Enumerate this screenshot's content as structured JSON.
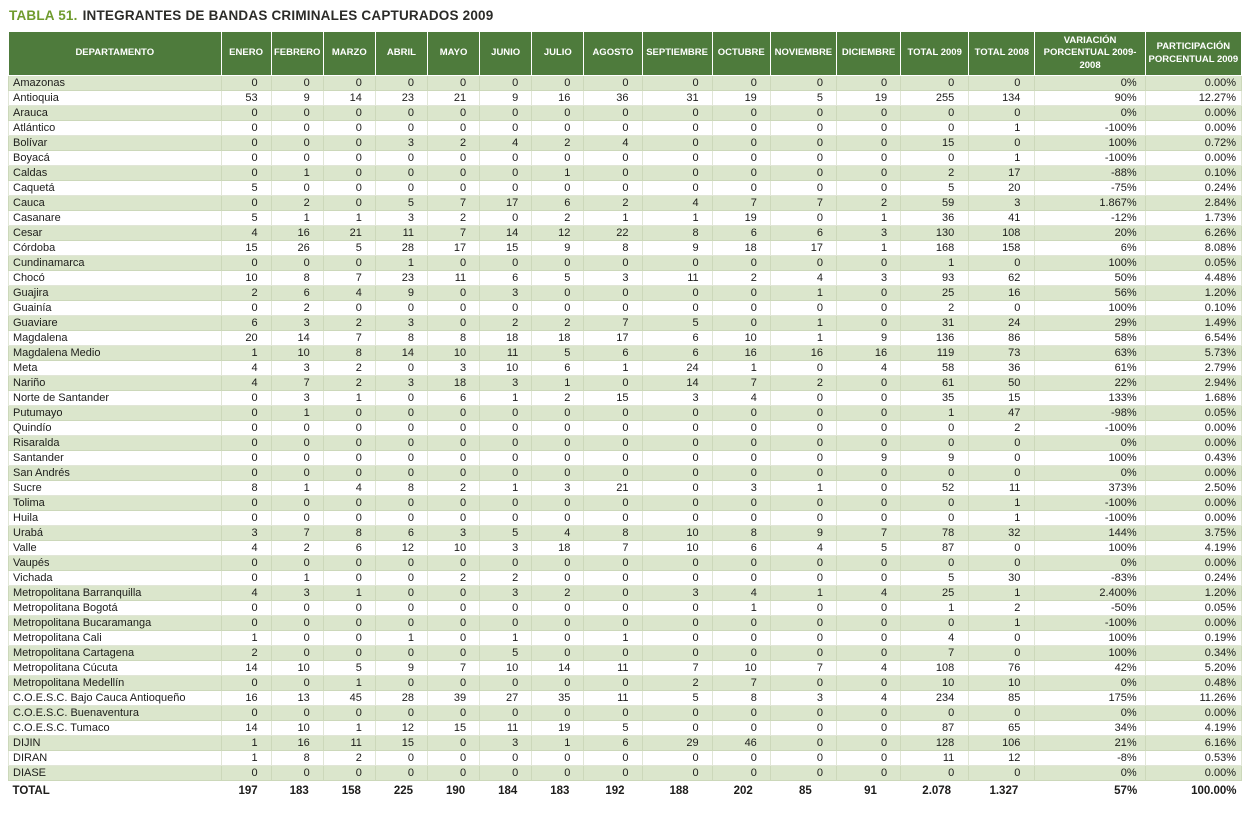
{
  "title": {
    "label": "TABLA 51.",
    "text": "INTEGRANTES DE BANDAS CRIMINALES CAPTURADOS 2009"
  },
  "colors": {
    "header_bg": "#4e7b3c",
    "row_alt": "#dbe6cc",
    "title_accent": "#6f9b2d"
  },
  "table": {
    "columns": [
      "DEPARTAMENTO",
      "ENERO",
      "FEBRERO",
      "MARZO",
      "ABRIL",
      "MAYO",
      "JUNIO",
      "JULIO",
      "AGOSTO",
      "SEPTIEMBRE",
      "OCTUBRE",
      "NOVIEMBRE",
      "DICIEMBRE",
      "TOTAL 2009",
      "TOTAL 2008",
      "VARIACIÓN\nPORCENTUAL 2009-2008",
      "PARTICIPACIÓN\nPORCENTUAL 2009"
    ],
    "rows": [
      [
        "Amazonas",
        "0",
        "0",
        "0",
        "0",
        "0",
        "0",
        "0",
        "0",
        "0",
        "0",
        "0",
        "0",
        "0",
        "0",
        "0%",
        "0.00%"
      ],
      [
        "Antioquia",
        "53",
        "9",
        "14",
        "23",
        "21",
        "9",
        "16",
        "36",
        "31",
        "19",
        "5",
        "19",
        "255",
        "134",
        "90%",
        "12.27%"
      ],
      [
        "Arauca",
        "0",
        "0",
        "0",
        "0",
        "0",
        "0",
        "0",
        "0",
        "0",
        "0",
        "0",
        "0",
        "0",
        "0",
        "0%",
        "0.00%"
      ],
      [
        "Atlántico",
        "0",
        "0",
        "0",
        "0",
        "0",
        "0",
        "0",
        "0",
        "0",
        "0",
        "0",
        "0",
        "0",
        "1",
        "-100%",
        "0.00%"
      ],
      [
        "Bolívar",
        "0",
        "0",
        "0",
        "3",
        "2",
        "4",
        "2",
        "4",
        "0",
        "0",
        "0",
        "0",
        "15",
        "0",
        "100%",
        "0.72%"
      ],
      [
        "Boyacá",
        "0",
        "0",
        "0",
        "0",
        "0",
        "0",
        "0",
        "0",
        "0",
        "0",
        "0",
        "0",
        "0",
        "1",
        "-100%",
        "0.00%"
      ],
      [
        "Caldas",
        "0",
        "1",
        "0",
        "0",
        "0",
        "0",
        "1",
        "0",
        "0",
        "0",
        "0",
        "0",
        "2",
        "17",
        "-88%",
        "0.10%"
      ],
      [
        "Caquetá",
        "5",
        "0",
        "0",
        "0",
        "0",
        "0",
        "0",
        "0",
        "0",
        "0",
        "0",
        "0",
        "5",
        "20",
        "-75%",
        "0.24%"
      ],
      [
        "Cauca",
        "0",
        "2",
        "0",
        "5",
        "7",
        "17",
        "6",
        "2",
        "4",
        "7",
        "7",
        "2",
        "59",
        "3",
        "1.867%",
        "2.84%"
      ],
      [
        "Casanare",
        "5",
        "1",
        "1",
        "3",
        "2",
        "0",
        "2",
        "1",
        "1",
        "19",
        "0",
        "1",
        "36",
        "41",
        "-12%",
        "1.73%"
      ],
      [
        "Cesar",
        "4",
        "16",
        "21",
        "11",
        "7",
        "14",
        "12",
        "22",
        "8",
        "6",
        "6",
        "3",
        "130",
        "108",
        "20%",
        "6.26%"
      ],
      [
        "Córdoba",
        "15",
        "26",
        "5",
        "28",
        "17",
        "15",
        "9",
        "8",
        "9",
        "18",
        "17",
        "1",
        "168",
        "158",
        "6%",
        "8.08%"
      ],
      [
        "Cundinamarca",
        "0",
        "0",
        "0",
        "1",
        "0",
        "0",
        "0",
        "0",
        "0",
        "0",
        "0",
        "0",
        "1",
        "0",
        "100%",
        "0.05%"
      ],
      [
        "Chocó",
        "10",
        "8",
        "7",
        "23",
        "11",
        "6",
        "5",
        "3",
        "11",
        "2",
        "4",
        "3",
        "93",
        "62",
        "50%",
        "4.48%"
      ],
      [
        "Guajira",
        "2",
        "6",
        "4",
        "9",
        "0",
        "3",
        "0",
        "0",
        "0",
        "0",
        "1",
        "0",
        "25",
        "16",
        "56%",
        "1.20%"
      ],
      [
        "Guainía",
        "0",
        "2",
        "0",
        "0",
        "0",
        "0",
        "0",
        "0",
        "0",
        "0",
        "0",
        "0",
        "2",
        "0",
        "100%",
        "0.10%"
      ],
      [
        "Guaviare",
        "6",
        "3",
        "2",
        "3",
        "0",
        "2",
        "2",
        "7",
        "5",
        "0",
        "1",
        "0",
        "31",
        "24",
        "29%",
        "1.49%"
      ],
      [
        "Magdalena",
        "20",
        "14",
        "7",
        "8",
        "8",
        "18",
        "18",
        "17",
        "6",
        "10",
        "1",
        "9",
        "136",
        "86",
        "58%",
        "6.54%"
      ],
      [
        "Magdalena Medio",
        "1",
        "10",
        "8",
        "14",
        "10",
        "11",
        "5",
        "6",
        "6",
        "16",
        "16",
        "16",
        "119",
        "73",
        "63%",
        "5.73%"
      ],
      [
        "Meta",
        "4",
        "3",
        "2",
        "0",
        "3",
        "10",
        "6",
        "1",
        "24",
        "1",
        "0",
        "4",
        "58",
        "36",
        "61%",
        "2.79%"
      ],
      [
        "Nariño",
        "4",
        "7",
        "2",
        "3",
        "18",
        "3",
        "1",
        "0",
        "14",
        "7",
        "2",
        "0",
        "61",
        "50",
        "22%",
        "2.94%"
      ],
      [
        "Norte de Santander",
        "0",
        "3",
        "1",
        "0",
        "6",
        "1",
        "2",
        "15",
        "3",
        "4",
        "0",
        "0",
        "35",
        "15",
        "133%",
        "1.68%"
      ],
      [
        "Putumayo",
        "0",
        "1",
        "0",
        "0",
        "0",
        "0",
        "0",
        "0",
        "0",
        "0",
        "0",
        "0",
        "1",
        "47",
        "-98%",
        "0.05%"
      ],
      [
        "Quindío",
        "0",
        "0",
        "0",
        "0",
        "0",
        "0",
        "0",
        "0",
        "0",
        "0",
        "0",
        "0",
        "0",
        "2",
        "-100%",
        "0.00%"
      ],
      [
        "Risaralda",
        "0",
        "0",
        "0",
        "0",
        "0",
        "0",
        "0",
        "0",
        "0",
        "0",
        "0",
        "0",
        "0",
        "0",
        "0%",
        "0.00%"
      ],
      [
        "Santander",
        "0",
        "0",
        "0",
        "0",
        "0",
        "0",
        "0",
        "0",
        "0",
        "0",
        "0",
        "9",
        "9",
        "0",
        "100%",
        "0.43%"
      ],
      [
        "San Andrés",
        "0",
        "0",
        "0",
        "0",
        "0",
        "0",
        "0",
        "0",
        "0",
        "0",
        "0",
        "0",
        "0",
        "0",
        "0%",
        "0.00%"
      ],
      [
        "Sucre",
        "8",
        "1",
        "4",
        "8",
        "2",
        "1",
        "3",
        "21",
        "0",
        "3",
        "1",
        "0",
        "52",
        "11",
        "373%",
        "2.50%"
      ],
      [
        "Tolima",
        "0",
        "0",
        "0",
        "0",
        "0",
        "0",
        "0",
        "0",
        "0",
        "0",
        "0",
        "0",
        "0",
        "1",
        "-100%",
        "0.00%"
      ],
      [
        "Huila",
        "0",
        "0",
        "0",
        "0",
        "0",
        "0",
        "0",
        "0",
        "0",
        "0",
        "0",
        "0",
        "0",
        "1",
        "-100%",
        "0.00%"
      ],
      [
        "Urabá",
        "3",
        "7",
        "8",
        "6",
        "3",
        "5",
        "4",
        "8",
        "10",
        "8",
        "9",
        "7",
        "78",
        "32",
        "144%",
        "3.75%"
      ],
      [
        "Valle",
        "4",
        "2",
        "6",
        "12",
        "10",
        "3",
        "18",
        "7",
        "10",
        "6",
        "4",
        "5",
        "87",
        "0",
        "100%",
        "4.19%"
      ],
      [
        "Vaupés",
        "0",
        "0",
        "0",
        "0",
        "0",
        "0",
        "0",
        "0",
        "0",
        "0",
        "0",
        "0",
        "0",
        "0",
        "0%",
        "0.00%"
      ],
      [
        "Vichada",
        "0",
        "1",
        "0",
        "0",
        "2",
        "2",
        "0",
        "0",
        "0",
        "0",
        "0",
        "0",
        "5",
        "30",
        "-83%",
        "0.24%"
      ],
      [
        "Metropolitana Barranquilla",
        "4",
        "3",
        "1",
        "0",
        "0",
        "3",
        "2",
        "0",
        "3",
        "4",
        "1",
        "4",
        "25",
        "1",
        "2.400%",
        "1.20%"
      ],
      [
        "Metropolitana Bogotá",
        "0",
        "0",
        "0",
        "0",
        "0",
        "0",
        "0",
        "0",
        "0",
        "1",
        "0",
        "0",
        "1",
        "2",
        "-50%",
        "0.05%"
      ],
      [
        "Metropolitana Bucaramanga",
        "0",
        "0",
        "0",
        "0",
        "0",
        "0",
        "0",
        "0",
        "0",
        "0",
        "0",
        "0",
        "0",
        "1",
        "-100%",
        "0.00%"
      ],
      [
        "Metropolitana Cali",
        "1",
        "0",
        "0",
        "1",
        "0",
        "1",
        "0",
        "1",
        "0",
        "0",
        "0",
        "0",
        "4",
        "0",
        "100%",
        "0.19%"
      ],
      [
        "Metropolitana Cartagena",
        "2",
        "0",
        "0",
        "0",
        "0",
        "5",
        "0",
        "0",
        "0",
        "0",
        "0",
        "0",
        "7",
        "0",
        "100%",
        "0.34%"
      ],
      [
        "Metropolitana Cúcuta",
        "14",
        "10",
        "5",
        "9",
        "7",
        "10",
        "14",
        "11",
        "7",
        "10",
        "7",
        "4",
        "108",
        "76",
        "42%",
        "5.20%"
      ],
      [
        "Metropolitana Medellín",
        "0",
        "0",
        "1",
        "0",
        "0",
        "0",
        "0",
        "0",
        "2",
        "7",
        "0",
        "0",
        "10",
        "10",
        "0%",
        "0.48%"
      ],
      [
        "C.O.E.S.C. Bajo Cauca Antioqueño",
        "16",
        "13",
        "45",
        "28",
        "39",
        "27",
        "35",
        "11",
        "5",
        "8",
        "3",
        "4",
        "234",
        "85",
        "175%",
        "11.26%"
      ],
      [
        "C.O.E.S.C. Buenaventura",
        "0",
        "0",
        "0",
        "0",
        "0",
        "0",
        "0",
        "0",
        "0",
        "0",
        "0",
        "0",
        "0",
        "0",
        "0%",
        "0.00%"
      ],
      [
        "C.O.E.S.C. Tumaco",
        "14",
        "10",
        "1",
        "12",
        "15",
        "11",
        "19",
        "5",
        "0",
        "0",
        "0",
        "0",
        "87",
        "65",
        "34%",
        "4.19%"
      ],
      [
        "DIJIN",
        "1",
        "16",
        "11",
        "15",
        "0",
        "3",
        "1",
        "6",
        "29",
        "46",
        "0",
        "0",
        "128",
        "106",
        "21%",
        "6.16%"
      ],
      [
        "DIRAN",
        "1",
        "8",
        "2",
        "0",
        "0",
        "0",
        "0",
        "0",
        "0",
        "0",
        "0",
        "0",
        "11",
        "12",
        "-8%",
        "0.53%"
      ],
      [
        "DIASE",
        "0",
        "0",
        "0",
        "0",
        "0",
        "0",
        "0",
        "0",
        "0",
        "0",
        "0",
        "0",
        "0",
        "0",
        "0%",
        "0.00%"
      ]
    ],
    "total_row": [
      "TOTAL",
      "197",
      "183",
      "158",
      "225",
      "190",
      "184",
      "183",
      "192",
      "188",
      "202",
      "85",
      "91",
      "2.078",
      "1.327",
      "57%",
      "100.00%"
    ]
  }
}
